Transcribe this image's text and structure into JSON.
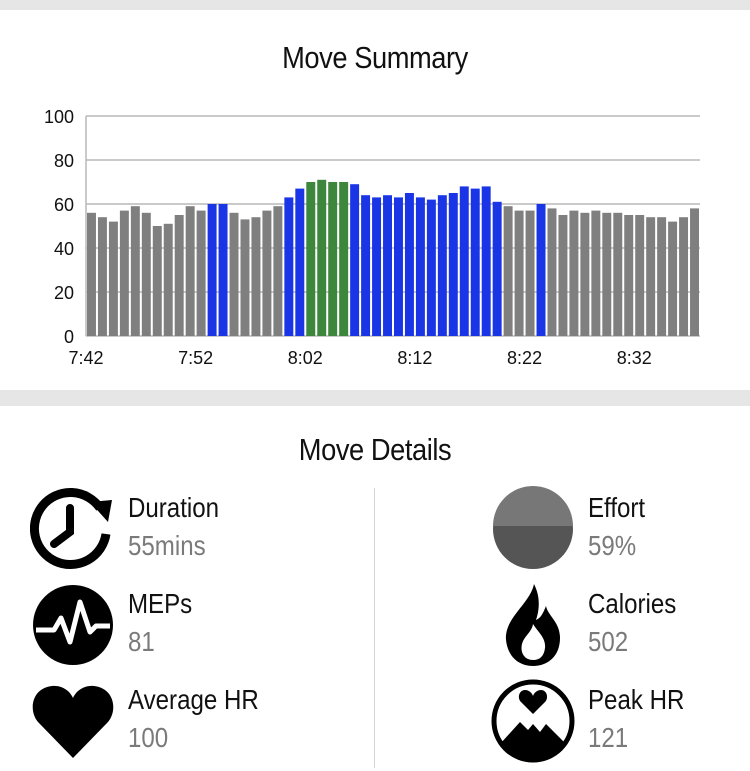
{
  "summary": {
    "title": "Move Summary"
  },
  "details": {
    "title": "Move Details"
  },
  "stats": {
    "duration": {
      "label": "Duration",
      "value": "55mins",
      "icon": "clock-icon"
    },
    "meps": {
      "label": "MEPs",
      "value": "81",
      "icon": "heartbeat-icon"
    },
    "average_hr": {
      "label": "Average HR",
      "value": "100",
      "icon": "heart-icon"
    },
    "effort": {
      "label": "Effort",
      "value": "59%",
      "icon": "effort-gauge-icon"
    },
    "calories": {
      "label": "Calories",
      "value": "502",
      "icon": "flame-icon"
    },
    "peak_hr": {
      "label": "Peak HR",
      "value": "121",
      "icon": "peak-heart-icon"
    }
  },
  "colors": {
    "gray_zone": "#7f7f7f",
    "blue_zone": "#1a35e6",
    "green_zone": "#3c873c"
  },
  "chart_data": {
    "type": "bar",
    "title": "",
    "xlabel": "",
    "ylabel": "",
    "ylim": [
      0,
      100
    ],
    "yticks": [
      "0",
      "20",
      "40",
      "60",
      "80",
      "100"
    ],
    "xticks": [
      "7:42",
      "7:52",
      "8:02",
      "8:12",
      "8:22",
      "8:32"
    ],
    "grid": true,
    "values": [
      56,
      54,
      52,
      57,
      59,
      56,
      50,
      51,
      55,
      59,
      57,
      60,
      60,
      56,
      53,
      54,
      57,
      59,
      63,
      67,
      70,
      71,
      70,
      70,
      69,
      64,
      63,
      64,
      63,
      65,
      63,
      62,
      64,
      65,
      68,
      67,
      68,
      61,
      59,
      57,
      57,
      60,
      58,
      55,
      57,
      56,
      57,
      56,
      56,
      55,
      55,
      54,
      54,
      52,
      54,
      58
    ],
    "zones": [
      "gray",
      "gray",
      "gray",
      "gray",
      "gray",
      "gray",
      "gray",
      "gray",
      "gray",
      "gray",
      "gray",
      "blue",
      "blue",
      "gray",
      "gray",
      "gray",
      "gray",
      "gray",
      "blue",
      "blue",
      "green",
      "green",
      "green",
      "green",
      "blue",
      "blue",
      "blue",
      "blue",
      "blue",
      "blue",
      "blue",
      "blue",
      "blue",
      "blue",
      "blue",
      "blue",
      "blue",
      "blue",
      "gray",
      "gray",
      "gray",
      "blue",
      "gray",
      "gray",
      "gray",
      "gray",
      "gray",
      "gray",
      "gray",
      "gray",
      "gray",
      "gray",
      "gray",
      "gray",
      "gray",
      "gray"
    ]
  }
}
